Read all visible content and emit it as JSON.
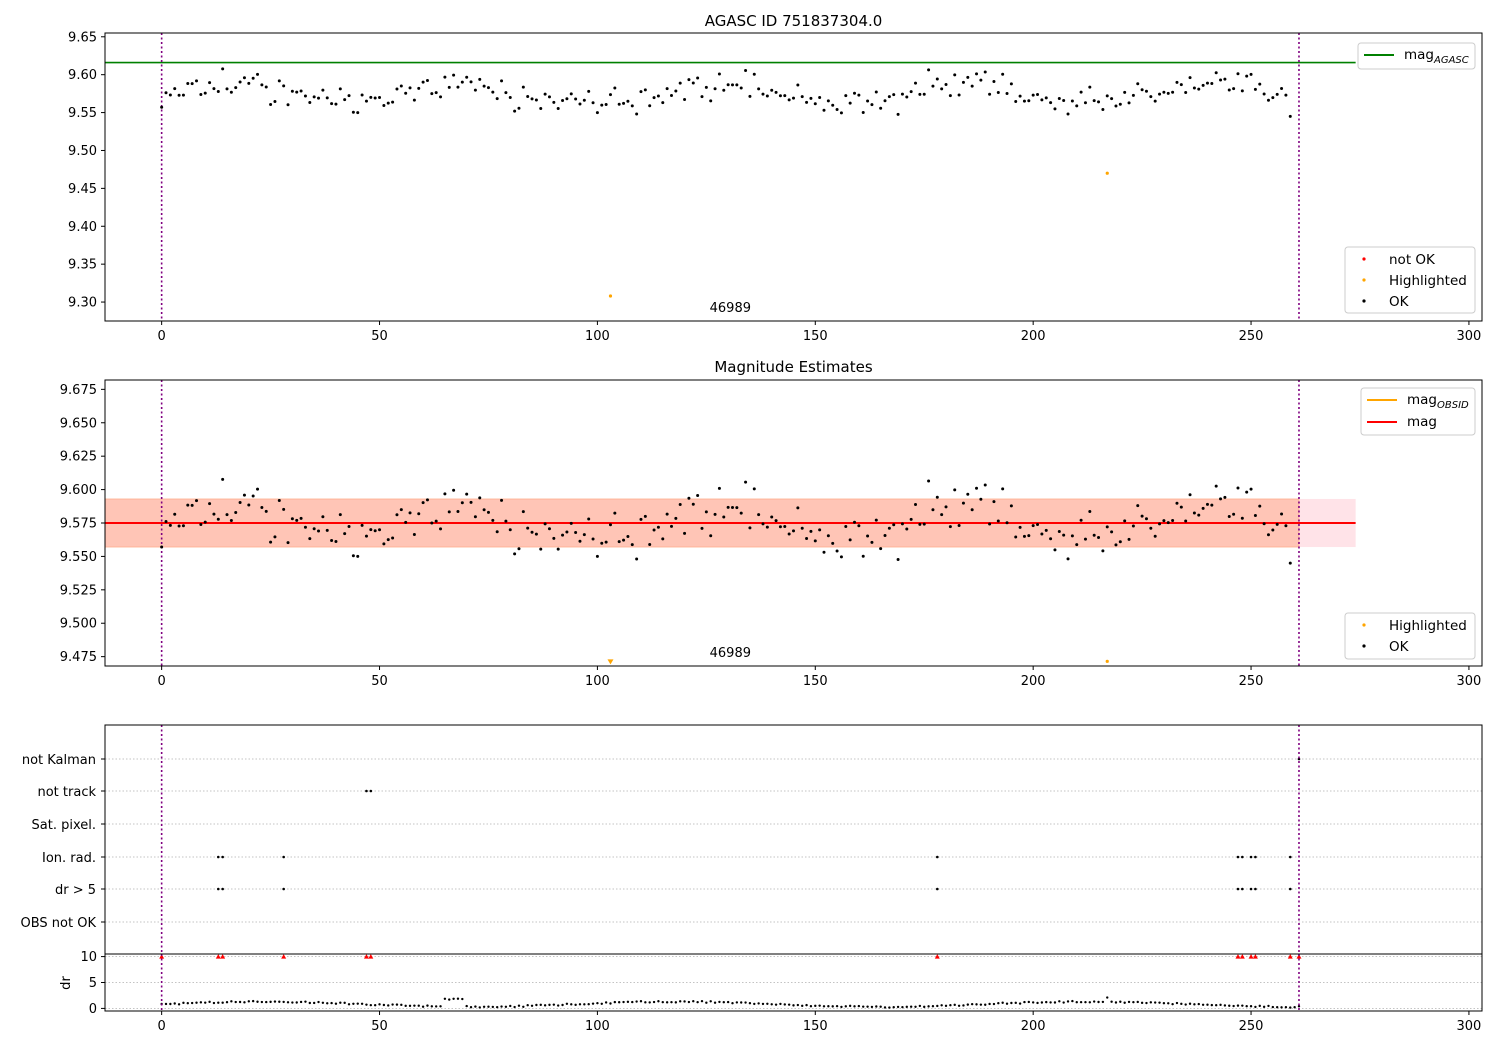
{
  "colors": {
    "ok": "#000000",
    "highlighted": "#ffa500",
    "not_ok": "#ff0000",
    "mag_agasc": "#008000",
    "mag_obsid": "#ffa500",
    "mag": "#ff0000",
    "interval_marker": "#800080",
    "band_inner": "#ffa07a",
    "band_outer": "#ffc0cb",
    "grid": "#b0b0b0"
  },
  "chart_data": [
    {
      "type": "scatter",
      "title": "AGASC ID 751837304.0",
      "xlim": [
        -13,
        303
      ],
      "ylim": [
        9.275,
        9.655
      ],
      "x_ticks": [
        "0",
        "50",
        "100",
        "150",
        "200",
        "250",
        "300"
      ],
      "y_ticks": [
        "9.30",
        "9.35",
        "9.40",
        "9.45",
        "9.50",
        "9.55",
        "9.60",
        "9.65"
      ],
      "obsid_label": {
        "text": "46989",
        "x": 130.5
      },
      "obsid_boundaries": [
        0,
        261
      ],
      "mag_agasc": 9.616,
      "ok_points": {
        "y_start": 9.557,
        "y_end": 9.545,
        "mean": 9.575,
        "count": 260
      },
      "highlighted_points": [
        [
          103,
          9.308
        ],
        [
          217,
          9.47
        ]
      ],
      "legend_lines": {
        "label": "mag",
        "sub": "AGASC"
      },
      "legend_points": [
        "not OK",
        "Highlighted",
        "OK"
      ]
    },
    {
      "type": "scatter",
      "title": "Magnitude Estimates",
      "xlim": [
        -13,
        303
      ],
      "ylim": [
        9.468,
        9.682
      ],
      "x_ticks": [
        "0",
        "50",
        "100",
        "150",
        "200",
        "250",
        "300"
      ],
      "y_ticks": [
        "9.475",
        "9.500",
        "9.525",
        "9.550",
        "9.575",
        "9.600",
        "9.625",
        "9.650",
        "9.675"
      ],
      "obsid_label": {
        "text": "46989",
        "x": 130.5
      },
      "obsid_boundaries": [
        0,
        261
      ],
      "mag": 9.575,
      "mag_obsid": 9.575,
      "band_inner": [
        -13,
        261,
        9.557,
        9.593
      ],
      "band_outer": [
        -13,
        274,
        9.557,
        9.593
      ],
      "highlighted_points": [
        [
          103,
          9.47
        ],
        [
          217,
          9.47
        ]
      ],
      "legend_lines": [
        {
          "label": "mag",
          "sub": "OBSID"
        },
        {
          "label": "mag",
          "sub": ""
        }
      ],
      "legend_points": [
        "Highlighted",
        "OK"
      ]
    },
    {
      "type": "scatter",
      "title": "",
      "xlim": [
        -13,
        303
      ],
      "x_ticks": [
        "0",
        "50",
        "100",
        "150",
        "200",
        "250",
        "300"
      ],
      "flag_rows": [
        "not Kalman",
        "not track",
        "Sat. pixel.",
        "Ion. rad.",
        "dr > 5",
        "OBS not OK"
      ],
      "flag_points": {
        "not Kalman": [
          261
        ],
        "not track": [
          47,
          48
        ],
        "Sat. pixel.": [],
        "Ion. rad.": [
          13,
          14,
          28,
          178,
          247,
          248,
          250,
          251,
          259
        ],
        "dr > 5": [
          13,
          14,
          28,
          178,
          247,
          248,
          250,
          251,
          259
        ],
        "OBS not OK": []
      },
      "ylabel": "dr",
      "dr_ylim": [
        -0.5,
        10.5
      ],
      "dr_ticks": [
        "0",
        "5",
        "10"
      ],
      "dr_clipped_x": [
        0,
        13,
        14,
        28,
        47,
        48,
        178,
        247,
        248,
        250,
        251,
        259,
        261
      ],
      "obsid_boundaries": [
        0,
        261
      ]
    }
  ]
}
